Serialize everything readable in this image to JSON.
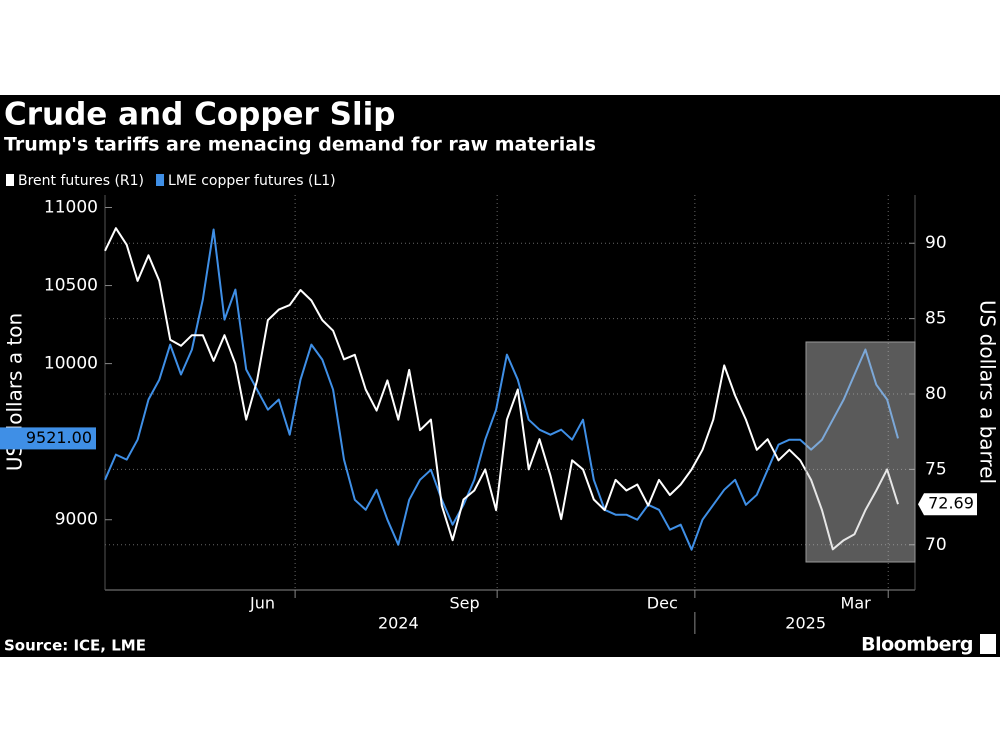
{
  "chart_data": {
    "type": "line",
    "title": "Crude and Copper Slip",
    "subtitle": "Trump's tariffs are menacing demand for raw materials",
    "source": "Source: ICE, LME",
    "brand": "Bloomberg",
    "ylabel": "US dollars a ton",
    "y2label": "US dollars a barrel",
    "xlim": [
      0,
      73
    ],
    "xticks": [
      {
        "value": 14.5,
        "label": "Jun"
      },
      {
        "value": 33.1,
        "label": "Sep"
      },
      {
        "value": 51.3,
        "label": "Dec"
      },
      {
        "value": 69.1,
        "label": "Mar"
      }
    ],
    "xgrid": [
      17.5,
      36.1,
      54.3,
      72.1
    ],
    "year_labels": [
      {
        "value": 27,
        "label": "2024"
      },
      {
        "value": 64.5,
        "label": "2025"
      }
    ],
    "year_divider": 54.3,
    "ylim": [
      8550,
      11080
    ],
    "yticks": [
      9000,
      10000,
      10500,
      11000
    ],
    "y2lim": [
      67,
      93.2
    ],
    "y2ticks": [
      70,
      75,
      80,
      85,
      90
    ],
    "grid": true,
    "series": [
      {
        "name": "Brent futures (R1)",
        "color": "#ffffff",
        "axis": "y2",
        "values": [
          89.5,
          91,
          89.9,
          87.5,
          89.2,
          87.5,
          83.6,
          83.2,
          83.9,
          83.9,
          82.2,
          83.9,
          82,
          78.3,
          80.9,
          84.9,
          85.6,
          85.9,
          86.9,
          86.2,
          84.9,
          84.2,
          82.3,
          82.6,
          80.3,
          78.9,
          80.9,
          78.3,
          81.6,
          77.6,
          78.3,
          72.6,
          70.3,
          73,
          73.6,
          75,
          72.3,
          78.3,
          80.3,
          75,
          77,
          74.6,
          71.7,
          75.6,
          75,
          73,
          72.3,
          74.3,
          73.6,
          74,
          72.6,
          74.3,
          73.3,
          74,
          75,
          76.3,
          78.3,
          81.9,
          79.9,
          78.3,
          76.3,
          77,
          75.6,
          76.3,
          75.6,
          74.3,
          72.3,
          69.7,
          70.3,
          70.7,
          72.3,
          73.6,
          75,
          72.69
        ]
      },
      {
        "name": "LME copper futures (L1)",
        "color": "#3f8fe6",
        "axis": "y",
        "values": [
          9256,
          9417,
          9385,
          9513,
          9770,
          9897,
          10122,
          9930,
          10090,
          10410,
          10859,
          10282,
          10474,
          9962,
          9833,
          9705,
          9770,
          9545,
          9897,
          10122,
          10026,
          9833,
          9385,
          9128,
          9064,
          9192,
          9000,
          8840,
          9128,
          9256,
          9320,
          9128,
          8968,
          9096,
          9256,
          9513,
          9705,
          10058,
          9897,
          9641,
          9577,
          9545,
          9577,
          9513,
          9641,
          9256,
          9064,
          9032,
          9032,
          9000,
          9096,
          9064,
          8936,
          8968,
          8808,
          9000,
          9096,
          9192,
          9256,
          9096,
          9160,
          9320,
          9481,
          9513,
          9513,
          9449,
          9513,
          9641,
          9770,
          9930,
          10090,
          9865,
          9770,
          9521
        ],
        "value_labels": {
          "73": "9521.00"
        }
      }
    ]
  }
}
